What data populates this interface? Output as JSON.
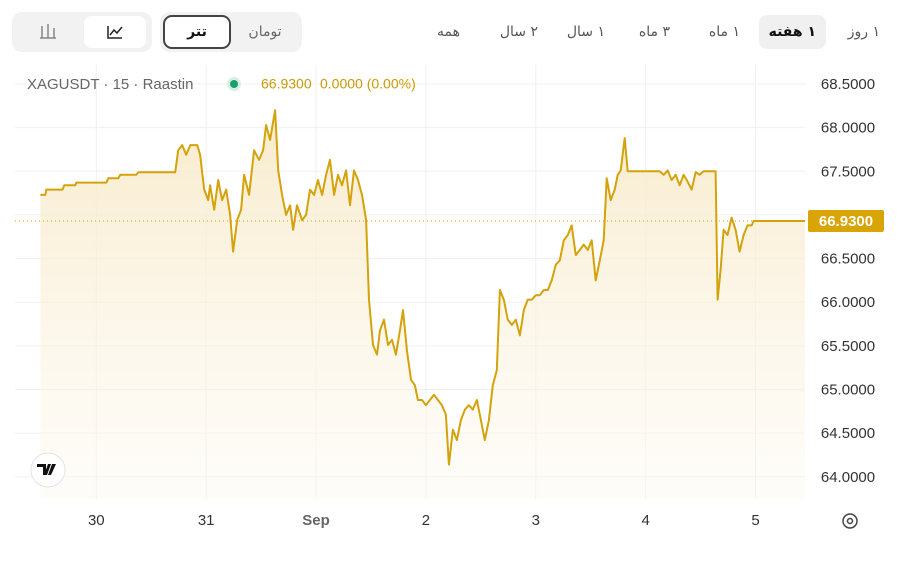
{
  "toolbar": {
    "periods": [
      "۱ روز",
      "۱ هفته",
      "۱ ماه",
      "۳ ماه",
      "۱ سال",
      "۲ سال",
      "همه"
    ],
    "active_period": "۱ هفته",
    "currencies": [
      "تومان",
      "تتر"
    ],
    "active_currency": "تتر"
  },
  "legend": {
    "symbol": "XAGUSDT · 15 · Raastin",
    "price": "66.9300",
    "change": "0.0000 (0.00%)"
  },
  "chart_data": {
    "type": "line",
    "color": "#d4a20a",
    "grid": true,
    "last_price": {
      "value": 66.93,
      "label": "66.9300"
    },
    "xlim": [
      29.26,
      36.45
    ],
    "xticks": [
      30,
      31,
      {
        "value": 32,
        "label": "Sep"
      },
      {
        "value": 33,
        "label": "2"
      },
      {
        "value": 34,
        "label": "3"
      },
      {
        "value": 35,
        "label": "4"
      },
      {
        "value": 36,
        "label": "5"
      }
    ],
    "ylim": [
      63.74,
      68.72
    ],
    "yticks": [
      {
        "value": 64,
        "label": "64.0000"
      },
      {
        "value": 64.5,
        "label": "64.5000"
      },
      {
        "value": 65,
        "label": "65.0000"
      },
      {
        "value": 65.5,
        "label": "65.5000"
      },
      {
        "value": 66,
        "label": "66.0000"
      },
      {
        "value": 66.5,
        "label": "66.5000"
      },
      {
        "value": 67,
        "label": "67.0000"
      },
      {
        "value": 67.5,
        "label": "67.5000"
      },
      {
        "value": 68,
        "label": "68.0000"
      },
      {
        "value": 68.5,
        "label": "68.5000"
      }
    ],
    "x": [
      29.491,
      29.536,
      29.545,
      29.691,
      29.709,
      29.809,
      29.818,
      30.091,
      30.109,
      30.2,
      30.218,
      30.364,
      30.382,
      30.718,
      30.745,
      30.782,
      30.818,
      30.855,
      30.918,
      30.945,
      30.982,
      31.018,
      31.036,
      31.073,
      31.109,
      31.145,
      31.182,
      31.218,
      31.245,
      31.282,
      31.318,
      31.345,
      31.391,
      31.436,
      31.482,
      31.518,
      31.545,
      31.582,
      31.627,
      31.655,
      31.691,
      31.727,
      31.764,
      31.791,
      31.827,
      31.873,
      31.909,
      31.945,
      31.982,
      32.018,
      32.055,
      32.091,
      32.127,
      32.164,
      32.2,
      32.236,
      32.273,
      32.309,
      32.345,
      32.382,
      32.418,
      32.455,
      32.482,
      32.518,
      32.555,
      32.582,
      32.618,
      32.655,
      32.691,
      32.727,
      32.764,
      32.791,
      32.827,
      32.864,
      32.9,
      32.927,
      32.964,
      33.0,
      33.036,
      33.073,
      33.109,
      33.145,
      33.182,
      33.209,
      33.245,
      33.282,
      33.318,
      33.355,
      33.391,
      33.427,
      33.464,
      33.5,
      33.536,
      33.573,
      33.609,
      33.645,
      33.673,
      33.709,
      33.745,
      33.782,
      33.818,
      33.855,
      33.891,
      33.927,
      33.964,
      34.0,
      34.036,
      34.073,
      34.109,
      34.145,
      34.182,
      34.218,
      34.255,
      34.291,
      34.327,
      34.364,
      34.4,
      34.436,
      34.473,
      34.509,
      34.545,
      34.582,
      34.618,
      34.645,
      34.682,
      34.718,
      34.745,
      34.773,
      34.809,
      34.836,
      35.127,
      35.164,
      35.2,
      35.236,
      35.273,
      35.309,
      35.345,
      35.382,
      35.418,
      35.455,
      35.491,
      35.527,
      35.636,
      35.655,
      35.682,
      35.709,
      35.745,
      35.782,
      35.818,
      35.855,
      35.891,
      35.927,
      35.964,
      35.982,
      36.45
    ],
    "values": [
      67.23,
      67.23,
      67.29,
      67.29,
      67.34,
      67.34,
      67.37,
      67.37,
      67.42,
      67.42,
      67.46,
      67.46,
      67.49,
      67.49,
      67.74,
      67.8,
      67.69,
      67.8,
      67.8,
      67.69,
      67.29,
      67.17,
      67.34,
      67.06,
      67.4,
      67.17,
      67.29,
      67.0,
      66.58,
      66.94,
      67.06,
      67.46,
      67.23,
      67.74,
      67.63,
      67.74,
      68.03,
      67.86,
      68.2,
      67.51,
      67.23,
      67.0,
      67.11,
      66.83,
      67.11,
      66.94,
      67.0,
      67.29,
      67.23,
      67.4,
      67.23,
      67.46,
      67.63,
      67.23,
      67.46,
      67.34,
      67.51,
      67.11,
      67.51,
      67.4,
      67.23,
      66.94,
      66.03,
      65.51,
      65.4,
      65.68,
      65.8,
      65.51,
      65.57,
      65.4,
      65.68,
      65.91,
      65.45,
      65.11,
      65.05,
      64.88,
      64.88,
      64.82,
      64.88,
      64.94,
      64.88,
      64.82,
      64.71,
      64.14,
      64.54,
      64.42,
      64.65,
      64.77,
      64.82,
      64.77,
      64.88,
      64.65,
      64.42,
      64.65,
      65.05,
      65.22,
      66.14,
      66.03,
      65.8,
      65.74,
      65.8,
      65.62,
      65.91,
      66.03,
      66.03,
      66.08,
      66.08,
      66.14,
      66.14,
      66.25,
      66.43,
      66.48,
      66.71,
      66.77,
      66.88,
      66.54,
      66.6,
      66.66,
      66.6,
      66.71,
      66.25,
      66.48,
      66.71,
      67.42,
      67.17,
      67.29,
      67.46,
      67.51,
      67.88,
      67.5,
      67.5,
      67.46,
      67.51,
      67.4,
      67.46,
      67.34,
      67.46,
      67.38,
      67.29,
      67.49,
      67.46,
      67.5,
      67.5,
      66.03,
      66.37,
      66.83,
      66.77,
      66.97,
      66.83,
      66.58,
      66.77,
      66.88,
      66.88,
      66.93,
      66.93
    ]
  }
}
